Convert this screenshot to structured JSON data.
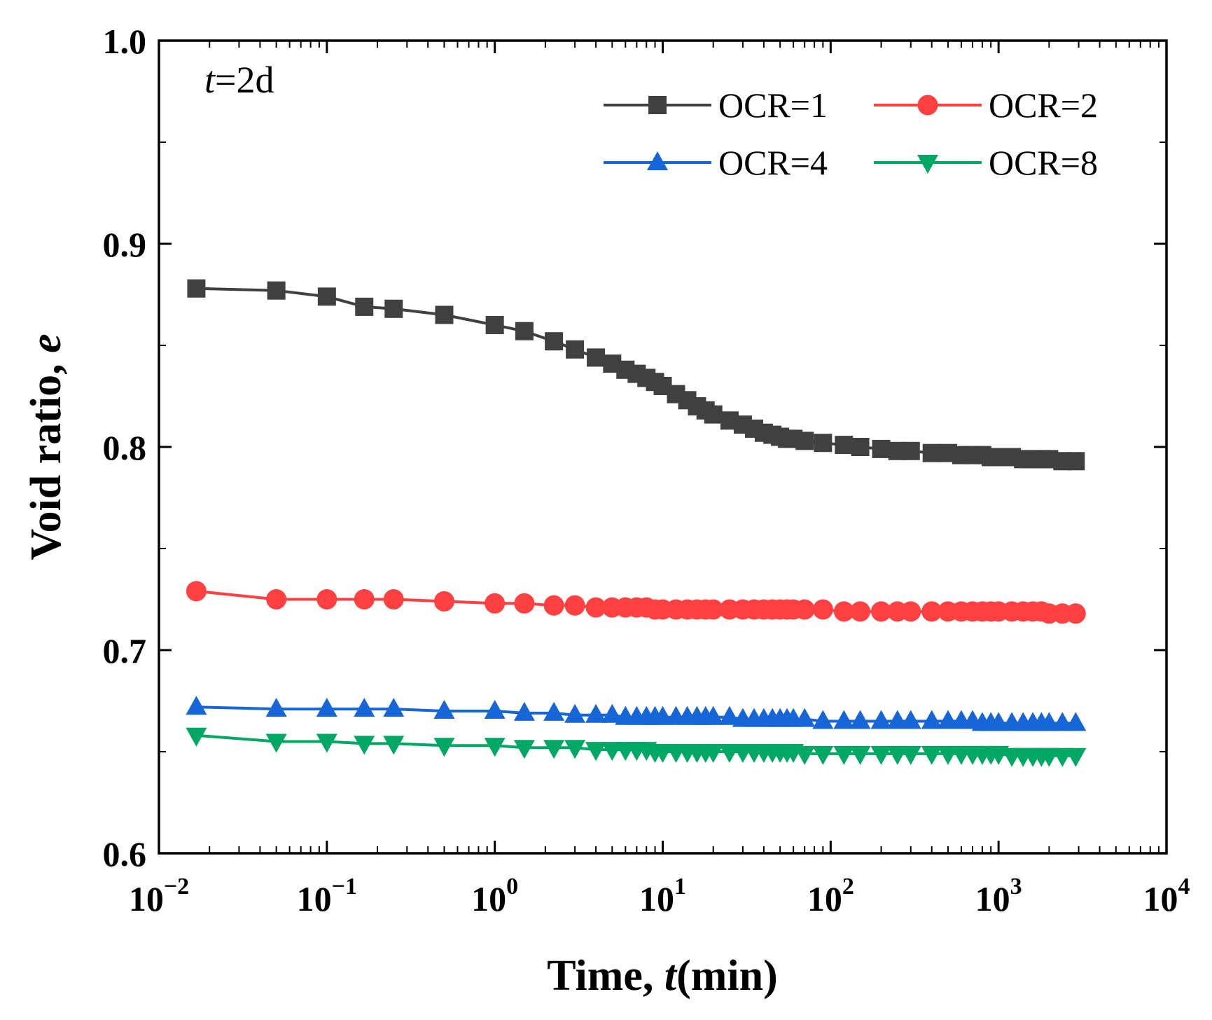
{
  "chart_data": {
    "type": "line",
    "annotation": {
      "italic": "t",
      "text": "=2d"
    },
    "xlabel": {
      "prefix": "Time, ",
      "italic": "t",
      "suffix": "(min)"
    },
    "ylabel": {
      "prefix": "Void ratio, ",
      "italic": "e"
    },
    "x_scale": "log",
    "xlim": [
      0.01,
      10000
    ],
    "ylim": [
      0.6,
      1.0
    ],
    "x_ticks": [
      {
        "base": "10",
        "exp": "−2"
      },
      {
        "base": "10",
        "exp": "−1"
      },
      {
        "base": "10",
        "exp": "0"
      },
      {
        "base": "10",
        "exp": "1"
      },
      {
        "base": "10",
        "exp": "2"
      },
      {
        "base": "10",
        "exp": "3"
      },
      {
        "base": "10",
        "exp": "4"
      }
    ],
    "y_ticks": [
      "0.6",
      "0.7",
      "0.8",
      "0.9",
      "1.0"
    ],
    "legend_position": "top-right",
    "legend_columns": 2,
    "x": [
      0.0167,
      0.05,
      0.1,
      0.167,
      0.25,
      0.5,
      1,
      1.5,
      2.25,
      3,
      4,
      5,
      6,
      7,
      8,
      9,
      10,
      12,
      14,
      16,
      18,
      20,
      25,
      30,
      35,
      40,
      45,
      50,
      55,
      60,
      70,
      90,
      120,
      150,
      200,
      250,
      300,
      400,
      500,
      600,
      700,
      800,
      900,
      1000,
      1200,
      1400,
      1600,
      1800,
      2000,
      2400,
      2880
    ],
    "series": [
      {
        "name": "OCR=1",
        "color": "#404040",
        "marker": "square",
        "values": [
          0.878,
          0.877,
          0.874,
          0.869,
          0.868,
          0.865,
          0.86,
          0.857,
          0.852,
          0.848,
          0.844,
          0.841,
          0.838,
          0.836,
          0.834,
          0.832,
          0.83,
          0.826,
          0.823,
          0.82,
          0.818,
          0.816,
          0.813,
          0.811,
          0.809,
          0.807,
          0.806,
          0.805,
          0.804,
          0.804,
          0.803,
          0.802,
          0.801,
          0.8,
          0.799,
          0.798,
          0.798,
          0.797,
          0.797,
          0.796,
          0.796,
          0.796,
          0.795,
          0.795,
          0.795,
          0.794,
          0.794,
          0.794,
          0.794,
          0.793,
          0.793
        ]
      },
      {
        "name": "OCR=2",
        "color": "#ff4040",
        "marker": "circle",
        "values": [
          0.729,
          0.725,
          0.725,
          0.725,
          0.725,
          0.724,
          0.723,
          0.723,
          0.722,
          0.722,
          0.721,
          0.721,
          0.721,
          0.721,
          0.721,
          0.72,
          0.72,
          0.72,
          0.72,
          0.72,
          0.72,
          0.72,
          0.72,
          0.72,
          0.72,
          0.72,
          0.72,
          0.72,
          0.72,
          0.72,
          0.72,
          0.72,
          0.719,
          0.719,
          0.719,
          0.719,
          0.719,
          0.719,
          0.719,
          0.719,
          0.719,
          0.719,
          0.719,
          0.719,
          0.719,
          0.719,
          0.719,
          0.719,
          0.718,
          0.718,
          0.718
        ]
      },
      {
        "name": "OCR=4",
        "color": "#1666d8",
        "marker": "triangle-up",
        "values": [
          0.672,
          0.671,
          0.671,
          0.671,
          0.671,
          0.67,
          0.67,
          0.669,
          0.669,
          0.668,
          0.668,
          0.668,
          0.667,
          0.667,
          0.667,
          0.667,
          0.667,
          0.667,
          0.667,
          0.667,
          0.667,
          0.667,
          0.667,
          0.666,
          0.666,
          0.666,
          0.666,
          0.666,
          0.666,
          0.666,
          0.666,
          0.665,
          0.665,
          0.665,
          0.665,
          0.665,
          0.665,
          0.665,
          0.665,
          0.665,
          0.665,
          0.664,
          0.664,
          0.664,
          0.664,
          0.664,
          0.664,
          0.664,
          0.664,
          0.664,
          0.664
        ]
      },
      {
        "name": "OCR=8",
        "color": "#00a863",
        "marker": "triangle-down",
        "values": [
          0.658,
          0.655,
          0.655,
          0.654,
          0.654,
          0.653,
          0.653,
          0.652,
          0.652,
          0.652,
          0.651,
          0.651,
          0.651,
          0.651,
          0.651,
          0.65,
          0.65,
          0.65,
          0.65,
          0.65,
          0.65,
          0.65,
          0.65,
          0.65,
          0.65,
          0.65,
          0.65,
          0.65,
          0.65,
          0.65,
          0.649,
          0.649,
          0.649,
          0.649,
          0.649,
          0.649,
          0.649,
          0.649,
          0.649,
          0.649,
          0.649,
          0.649,
          0.649,
          0.649,
          0.648,
          0.648,
          0.648,
          0.648,
          0.648,
          0.648,
          0.648
        ]
      }
    ]
  }
}
